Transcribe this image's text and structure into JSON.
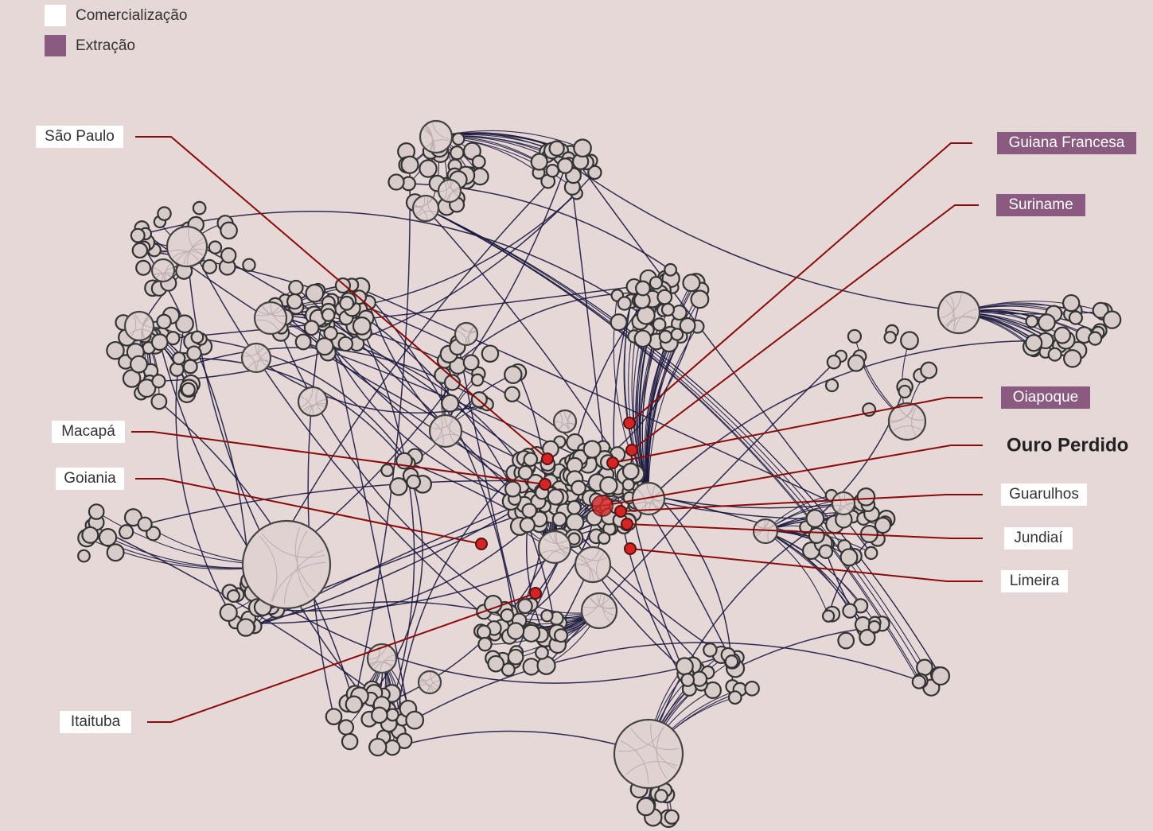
{
  "legend": [
    {
      "label": "Comercialização",
      "color": "#ffffff"
    },
    {
      "label": "Extração",
      "color": "#8a5a80"
    }
  ],
  "labels": [
    {
      "text": "São Paulo",
      "color": "#ffffff"
    },
    {
      "text": "Macapá",
      "color": "#ffffff"
    },
    {
      "text": "Goiania",
      "color": "#ffffff"
    },
    {
      "text": "Itaituba",
      "color": "#ffffff"
    },
    {
      "text": "Guiana Francesa",
      "color": "#8a5a80"
    },
    {
      "text": "Suriname",
      "color": "#8a5a80"
    },
    {
      "text": "Oiapoque",
      "color": "#8a5a80"
    },
    {
      "text": "Ouro Perdido"
    },
    {
      "text": "Guarulhos",
      "color": "#ffffff"
    },
    {
      "text": "Jundiaí",
      "color": "#ffffff"
    },
    {
      "text": "Limeira",
      "color": "#ffffff"
    }
  ]
}
